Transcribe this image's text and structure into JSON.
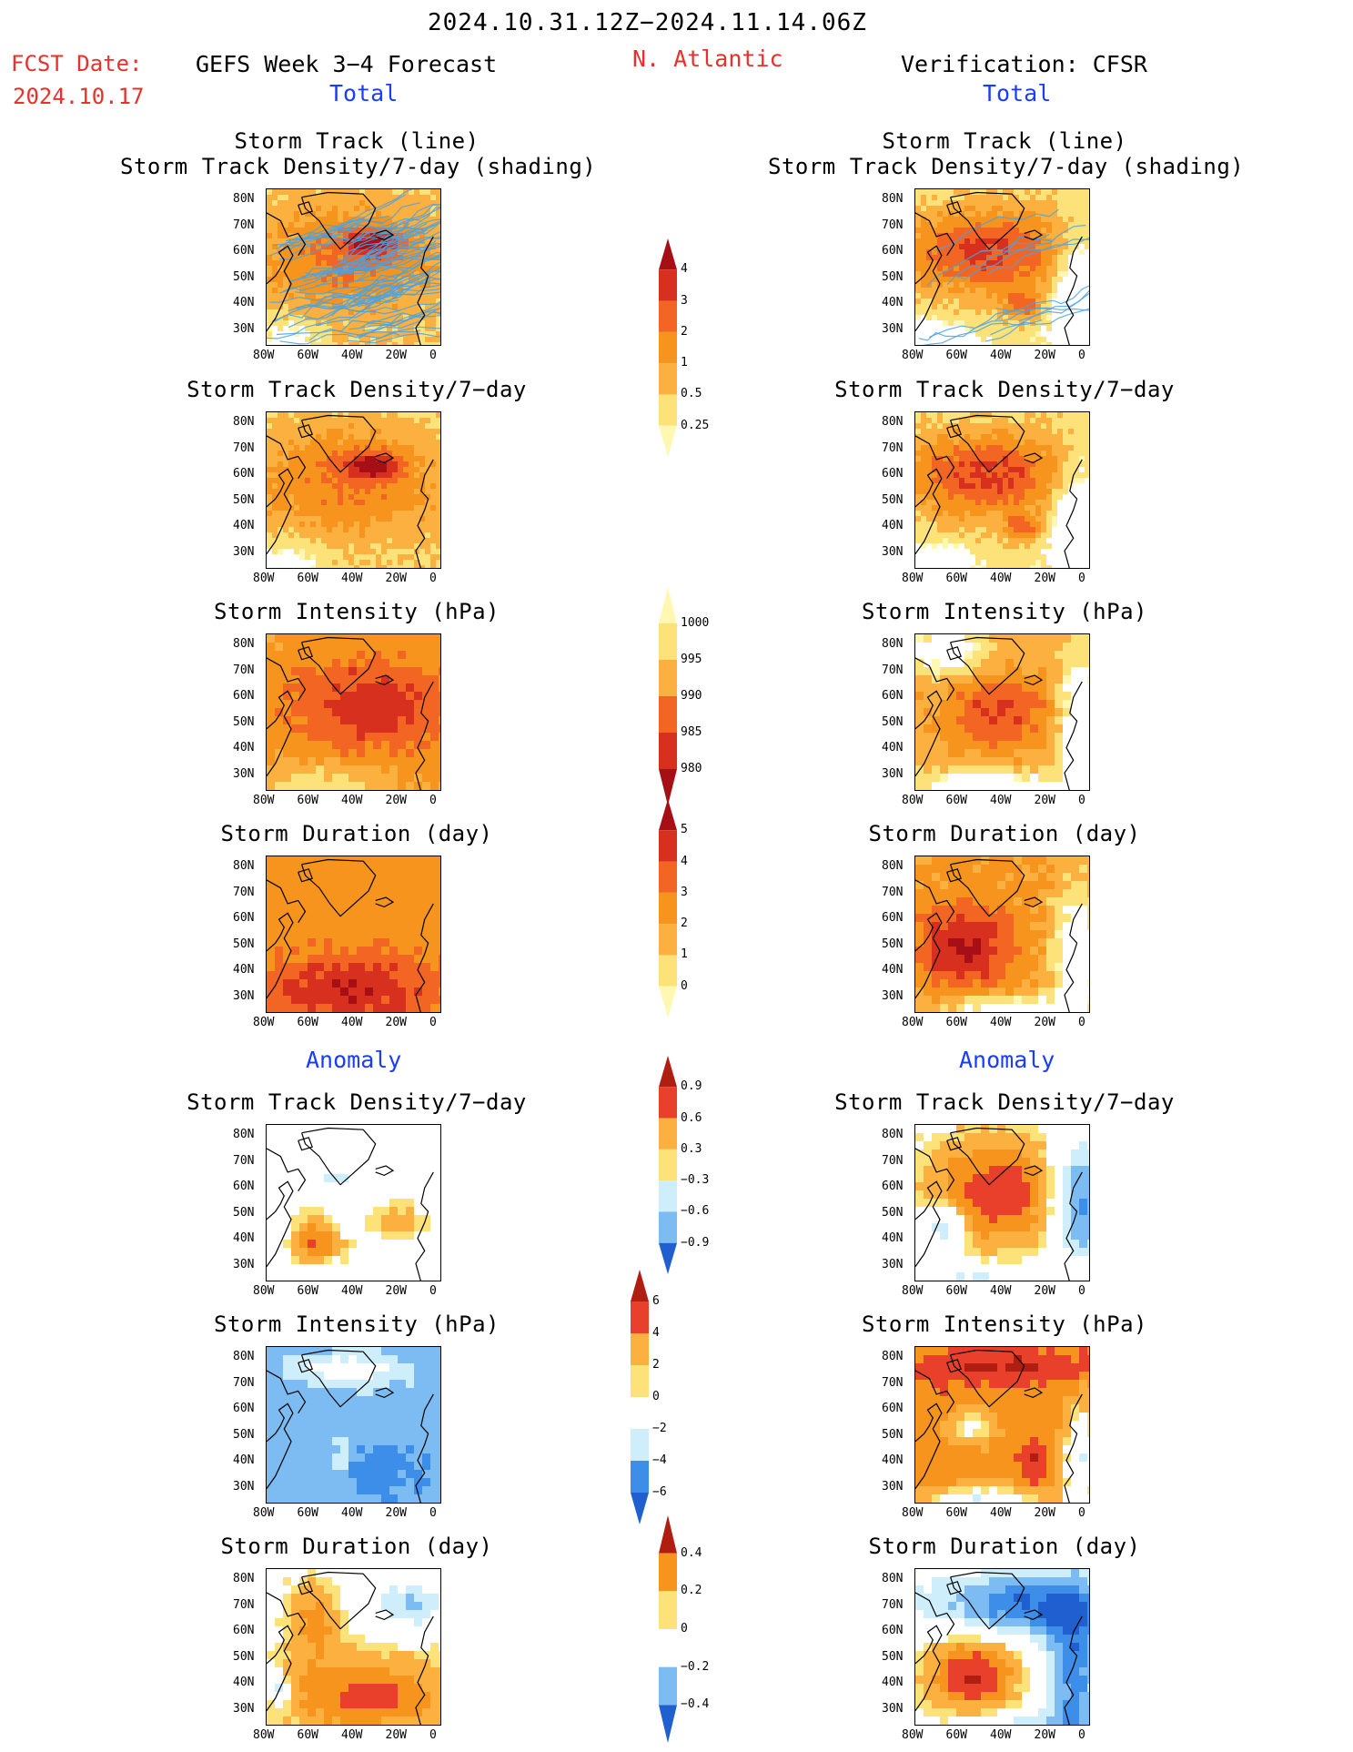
{
  "header": {
    "date_range": "2024.10.31.12Z−2024.11.14.06Z",
    "fcst_label": "FCST Date:",
    "fcst_date": "2024.10.17",
    "left_title": "GEFS Week 3−4 Forecast",
    "region": "N. Atlantic",
    "right_title": "Verification: CFSR",
    "total_left": "Total",
    "total_right": "Total",
    "anomaly_left": "Anomaly",
    "anomaly_right": "Anomaly"
  },
  "colors": {
    "scale_total": [
      "#fff7b2",
      "#fde27a",
      "#fbb040",
      "#f7941d",
      "#f26522",
      "#d7301f",
      "#a50f15"
    ],
    "scale_anom": [
      "#1f5fcf",
      "#3d8ee8",
      "#7cbcf2",
      "#cfeefc",
      "#ffffff",
      "#fde27a",
      "#fbb040",
      "#f7941d",
      "#e8402a",
      "#b01e12"
    ],
    "track_line": "#4aa3e0",
    "land_outline": "#000000"
  },
  "axes": {
    "lat_ticks": [
      "80N",
      "70N",
      "60N",
      "50N",
      "40N",
      "30N"
    ],
    "lon_ticks": [
      "80W",
      "60W",
      "40W",
      "20W",
      "0"
    ]
  },
  "colorbars": [
    {
      "labels": [
        "4",
        "3",
        "2",
        "1",
        "0.5",
        "0.25"
      ],
      "scale": "total"
    },
    {
      "labels": [
        "1000",
        "995",
        "990",
        "985",
        "980"
      ],
      "scale": "total_reverse"
    },
    {
      "labels": [
        "5",
        "4",
        "3",
        "2",
        "1",
        "0"
      ],
      "scale": "total"
    },
    {
      "labels": [
        "0.9",
        "0.6",
        "0.3",
        "−0.3",
        "−0.6",
        "−0.9"
      ],
      "scale": "anom"
    },
    {
      "labels": [
        "6",
        "4",
        "2",
        "0",
        "−2",
        "−4",
        "−6"
      ],
      "scale": "anom"
    },
    {
      "labels": [
        "0.4",
        "0.2",
        "0",
        "−0.2",
        "−0.4"
      ],
      "scale": "anom"
    }
  ],
  "chart_data": [
    {
      "type": "heatmap",
      "column": "GEFS Week 3−4 Forecast",
      "section": "Total",
      "title_lines": [
        "Storm Track (line)",
        "Storm Track Density/7‑day (shading)"
      ],
      "field": "storm_track_density",
      "pattern": "gefs_density",
      "tracks": true,
      "xlabel": "",
      "ylabel": ""
    },
    {
      "type": "heatmap",
      "column": "Verification: CFSR",
      "section": "Total",
      "title_lines": [
        "Storm Track (line)",
        "Storm Track Density/7‑day (shading)"
      ],
      "field": "storm_track_density",
      "pattern": "cfsr_density",
      "tracks": true,
      "xlabel": "",
      "ylabel": ""
    },
    {
      "type": "heatmap",
      "column": "GEFS Week 3−4 Forecast",
      "section": "Total",
      "title_lines": [
        "Storm Track Density/7−day"
      ],
      "field": "storm_track_density",
      "pattern": "gefs_density",
      "tracks": false
    },
    {
      "type": "heatmap",
      "column": "Verification: CFSR",
      "section": "Total",
      "title_lines": [
        "Storm Track Density/7−day"
      ],
      "field": "storm_track_density",
      "pattern": "cfsr_density",
      "tracks": false
    },
    {
      "type": "heatmap",
      "column": "GEFS Week 3−4 Forecast",
      "section": "Total",
      "title_lines": [
        "Storm Intensity (hPa)"
      ],
      "field": "storm_intensity",
      "pattern": "gefs_intensity",
      "tracks": false
    },
    {
      "type": "heatmap",
      "column": "Verification: CFSR",
      "section": "Total",
      "title_lines": [
        "Storm Intensity (hPa)"
      ],
      "field": "storm_intensity",
      "pattern": "cfsr_intensity",
      "tracks": false
    },
    {
      "type": "heatmap",
      "column": "GEFS Week 3−4 Forecast",
      "section": "Total",
      "title_lines": [
        "Storm Duration (day)"
      ],
      "field": "storm_duration",
      "pattern": "gefs_duration",
      "tracks": false
    },
    {
      "type": "heatmap",
      "column": "Verification: CFSR",
      "section": "Total",
      "title_lines": [
        "Storm Duration (day)"
      ],
      "field": "storm_duration",
      "pattern": "cfsr_duration",
      "tracks": false
    },
    {
      "type": "heatmap",
      "column": "GEFS Week 3−4 Forecast",
      "section": "Anomaly",
      "title_lines": [
        "Storm Track Density/7−day"
      ],
      "field": "storm_track_density_anomaly",
      "pattern": "gefs_density_anom",
      "tracks": false
    },
    {
      "type": "heatmap",
      "column": "Verification: CFSR",
      "section": "Anomaly",
      "title_lines": [
        "Storm Track Density/7−day"
      ],
      "field": "storm_track_density_anomaly",
      "pattern": "cfsr_density_anom",
      "tracks": false
    },
    {
      "type": "heatmap",
      "column": "GEFS Week 3−4 Forecast",
      "section": "Anomaly",
      "title_lines": [
        "Storm Intensity (hPa)"
      ],
      "field": "storm_intensity_anomaly",
      "pattern": "gefs_intensity_anom",
      "tracks": false
    },
    {
      "type": "heatmap",
      "column": "Verification: CFSR",
      "section": "Anomaly",
      "title_lines": [
        "Storm Intensity (hPa)"
      ],
      "field": "storm_intensity_anomaly",
      "pattern": "cfsr_intensity_anom",
      "tracks": false
    },
    {
      "type": "heatmap",
      "column": "GEFS Week 3−4 Forecast",
      "section": "Anomaly",
      "title_lines": [
        "Storm Duration (day)"
      ],
      "field": "storm_duration_anomaly",
      "pattern": "gefs_duration_anom",
      "tracks": false
    },
    {
      "type": "heatmap",
      "column": "Verification: CFSR",
      "section": "Anomaly",
      "title_lines": [
        "Storm Duration (day)"
      ],
      "field": "storm_duration_anomaly",
      "pattern": "cfsr_duration_anom",
      "tracks": false
    }
  ]
}
